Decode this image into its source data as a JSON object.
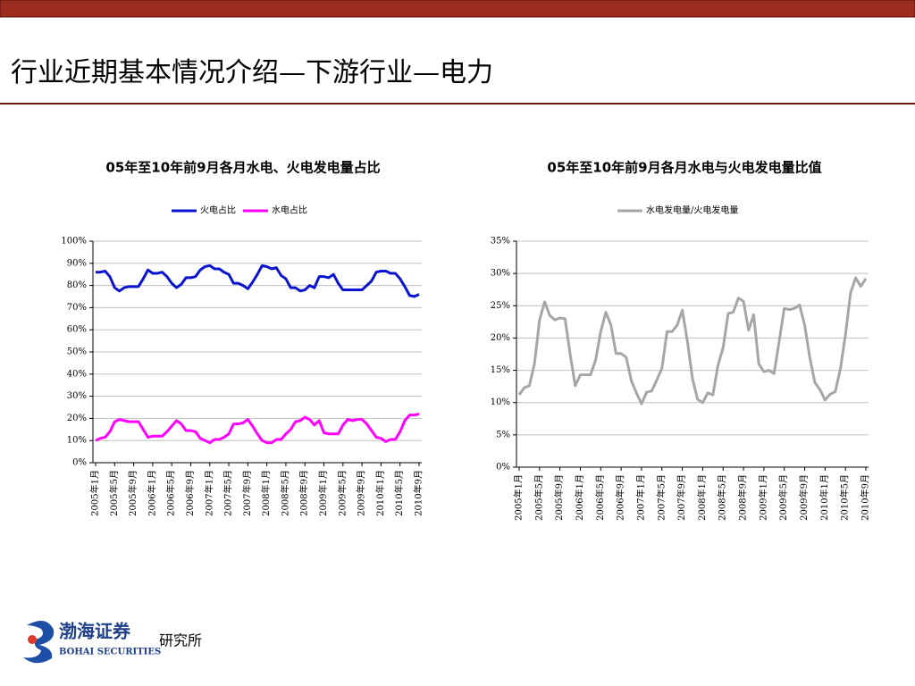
{
  "page": {
    "title": "行业近期基本情况介绍—下游行业—电力",
    "logo_name": "渤海证券",
    "logo_english": "BOHAI SECURITIES",
    "logo_unit": "研究所"
  },
  "chart_data": [
    {
      "type": "line",
      "title": "05年至10年前9月各月水电、火电发电量占比",
      "categories": [
        "2005年1月",
        null,
        null,
        null,
        "2005年5月",
        null,
        null,
        null,
        "2005年9月",
        null,
        null,
        null,
        "2006年1月",
        null,
        null,
        null,
        "2006年5月",
        null,
        null,
        null,
        "2006年9月",
        null,
        null,
        null,
        "2007年1月",
        null,
        null,
        null,
        "2007年5月",
        null,
        null,
        null,
        "2007年9月",
        null,
        null,
        null,
        "2008年1月",
        null,
        null,
        null,
        "2008年5月",
        null,
        null,
        null,
        "2008年9月",
        null,
        null,
        null,
        "2009年1月",
        null,
        null,
        null,
        "2009年5月",
        null,
        null,
        null,
        "2009年9月",
        null,
        null,
        null,
        "2010年1月",
        null,
        null,
        null,
        "2010年5月",
        null,
        null,
        null,
        "2010年9月"
      ],
      "series": [
        {
          "name": "火电占比",
          "color": "#0a14d0",
          "values": [
            86,
            86,
            86.5,
            84,
            79,
            77.5,
            79,
            79.5,
            79.5,
            79.5,
            83,
            87,
            85.5,
            85.5,
            86,
            84,
            81,
            79,
            80.5,
            83.5,
            83.5,
            84,
            87,
            88.5,
            89,
            87.5,
            87.5,
            86,
            85,
            81,
            81,
            80,
            78.5,
            81.5,
            85,
            89,
            88.5,
            87.5,
            88,
            84.5,
            83,
            79,
            79,
            77.5,
            78,
            80,
            79,
            84,
            84,
            83.5,
            85,
            81,
            78,
            78,
            78,
            78,
            78,
            80,
            82,
            86,
            86.5,
            86.5,
            85.5,
            85.5,
            83,
            79.5,
            75.5,
            75,
            76
          ]
        },
        {
          "name": "水电占比",
          "color": "#ff00ff",
          "values": [
            10,
            11,
            11.5,
            14,
            18.5,
            19.5,
            19,
            18.5,
            18.5,
            18.5,
            15,
            11.5,
            12,
            12,
            12,
            14,
            16.5,
            19,
            17.5,
            14.5,
            14.5,
            14,
            11,
            10,
            9,
            10.5,
            10.5,
            11.5,
            13,
            17.5,
            17.5,
            18,
            19.5,
            16.5,
            13,
            10,
            9,
            9,
            10.5,
            10.5,
            13,
            15,
            18.5,
            19,
            20.5,
            19.5,
            17,
            19,
            13.5,
            13,
            13,
            13,
            17,
            19.5,
            19,
            19.5,
            19.5,
            17.5,
            14.5,
            11.5,
            11,
            9.5,
            10.5,
            10.5,
            14,
            19,
            21.5,
            21.5,
            22
          ]
        }
      ],
      "ylim": [
        0,
        100
      ],
      "yticks": [
        {
          "value": 0,
          "label": "0%"
        },
        {
          "value": 10,
          "label": "10%"
        },
        {
          "value": 20,
          "label": "20%"
        },
        {
          "value": 30,
          "label": "30%"
        },
        {
          "value": 40,
          "label": "40%"
        },
        {
          "value": 50,
          "label": "50%"
        },
        {
          "value": 60,
          "label": "60%"
        },
        {
          "value": 70,
          "label": "70%"
        },
        {
          "value": 80,
          "label": "80%"
        },
        {
          "value": 90,
          "label": "90%"
        },
        {
          "value": 100,
          "label": "100%"
        }
      ],
      "grid": true,
      "legend": "top"
    },
    {
      "type": "line",
      "title": "05年至10年前9月各月水电与火电发电量比值",
      "categories": [
        "2005年1月",
        null,
        null,
        null,
        "2005年5月",
        null,
        null,
        null,
        "2005年9月",
        null,
        null,
        null,
        "2006年1月",
        null,
        null,
        null,
        "2006年5月",
        null,
        null,
        null,
        "2006年9月",
        null,
        null,
        null,
        "2007年1月",
        null,
        null,
        null,
        "2007年5月",
        null,
        null,
        null,
        "2007年9月",
        null,
        null,
        null,
        "2008年1月",
        null,
        null,
        null,
        "2008年5月",
        null,
        null,
        null,
        "2008年9月",
        null,
        null,
        null,
        "2009年1月",
        null,
        null,
        null,
        "2009年5月",
        null,
        null,
        null,
        "2009年9月",
        null,
        null,
        null,
        "2010年1月",
        null,
        null,
        null,
        "2010年5月",
        null,
        null,
        null,
        "2010年9月"
      ],
      "series": [
        {
          "name": "水电发电量/火电发电量",
          "color": "#a6a6a6",
          "values": [
            11.2,
            12.3,
            12.6,
            16,
            22.8,
            25.6,
            23.5,
            22.8,
            23.1,
            23,
            17.5,
            12.6,
            14.3,
            14.3,
            14.3,
            16.6,
            21,
            24,
            22,
            17.6,
            17.6,
            17,
            13.4,
            11.5,
            9.8,
            11.6,
            11.8,
            13.5,
            15.3,
            21,
            21,
            22,
            24.3,
            19.5,
            13.7,
            10.5,
            10,
            11.5,
            11.2,
            15.8,
            18.5,
            23.8,
            24,
            26.2,
            25.7,
            21.2,
            23.6,
            16,
            14.8,
            15,
            14.5,
            19.5,
            24.6,
            24.4,
            24.6,
            25.1,
            22,
            17,
            13.1,
            12,
            10.4,
            11.3,
            11.7,
            15.2,
            20.5,
            27,
            29.3,
            28,
            29.2
          ]
        }
      ],
      "ylim": [
        0,
        35
      ],
      "yticks": [
        {
          "value": 0,
          "label": "0%"
        },
        {
          "value": 5,
          "label": "5%"
        },
        {
          "value": 10,
          "label": "10%"
        },
        {
          "value": 15,
          "label": "15%"
        },
        {
          "value": 20,
          "label": "20%"
        },
        {
          "value": 25,
          "label": "25%"
        },
        {
          "value": 30,
          "label": "30%"
        },
        {
          "value": 35,
          "label": "35%"
        }
      ],
      "grid": true,
      "legend": "top"
    }
  ]
}
